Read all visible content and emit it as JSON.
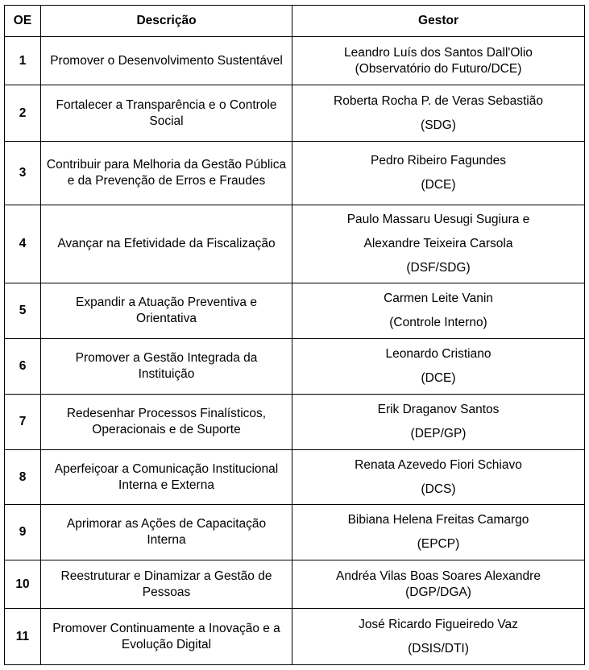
{
  "headers": {
    "oe": "OE",
    "descricao": "Descrição",
    "gestor": "Gestor"
  },
  "rows": [
    {
      "oe": "1",
      "descricao": "Promover o Desenvolvimento Sustentável",
      "gestor": [
        "Leandro Luís dos Santos Dall'Olio",
        "(Observatório do Futuro/DCE)"
      ],
      "spaced": false
    },
    {
      "oe": "2",
      "descricao": "Fortalecer a Transparência e o Controle Social",
      "gestor": [
        "Roberta Rocha P. de Veras Sebastião",
        "(SDG)"
      ],
      "spaced": true
    },
    {
      "oe": "3",
      "descricao": "Contribuir para Melhoria da Gestão Pública e da Prevenção de Erros e Fraudes",
      "gestor": [
        "Pedro Ribeiro Fagundes",
        "(DCE)"
      ],
      "spaced": true
    },
    {
      "oe": "4",
      "descricao": "Avançar na Efetividade da Fiscalização",
      "gestor": [
        "Paulo Massaru Uesugi Sugiura e",
        "Alexandre Teixeira Carsola",
        "(DSF/SDG)"
      ],
      "spaced": true
    },
    {
      "oe": "5",
      "descricao": "Expandir a Atuação Preventiva e Orientativa",
      "gestor": [
        "Carmen Leite Vanin",
        "(Controle Interno)"
      ],
      "spaced": true
    },
    {
      "oe": "6",
      "descricao": "Promover a Gestão Integrada da Instituição",
      "gestor": [
        "Leonardo Cristiano",
        "(DCE)"
      ],
      "spaced": true
    },
    {
      "oe": "7",
      "descricao": "Redesenhar Processos Finalísticos, Operacionais e de Suporte",
      "gestor": [
        "Erik Draganov Santos",
        "(DEP/GP)"
      ],
      "spaced": true
    },
    {
      "oe": "8",
      "descricao": "Aperfeiçoar a Comunicação Institucional Interna e Externa",
      "gestor": [
        "Renata Azevedo Fiori Schiavo",
        "(DCS)"
      ],
      "spaced": true
    },
    {
      "oe": "9",
      "descricao": "Aprimorar as Ações de Capacitação Interna",
      "gestor": [
        "Bibiana Helena Freitas Camargo",
        "(EPCP)"
      ],
      "spaced": true
    },
    {
      "oe": "10",
      "descricao": "Reestruturar e Dinamizar a Gestão de Pessoas",
      "gestor": [
        "Andréa Vilas Boas Soares Alexandre",
        "(DGP/DGA)"
      ],
      "spaced": false
    },
    {
      "oe": "11",
      "descricao": "Promover Continuamente a Inovação e a Evolução Digital",
      "gestor": [
        "José Ricardo Figueiredo Vaz",
        "(DSIS/DTI)"
      ],
      "spaced": true
    }
  ]
}
